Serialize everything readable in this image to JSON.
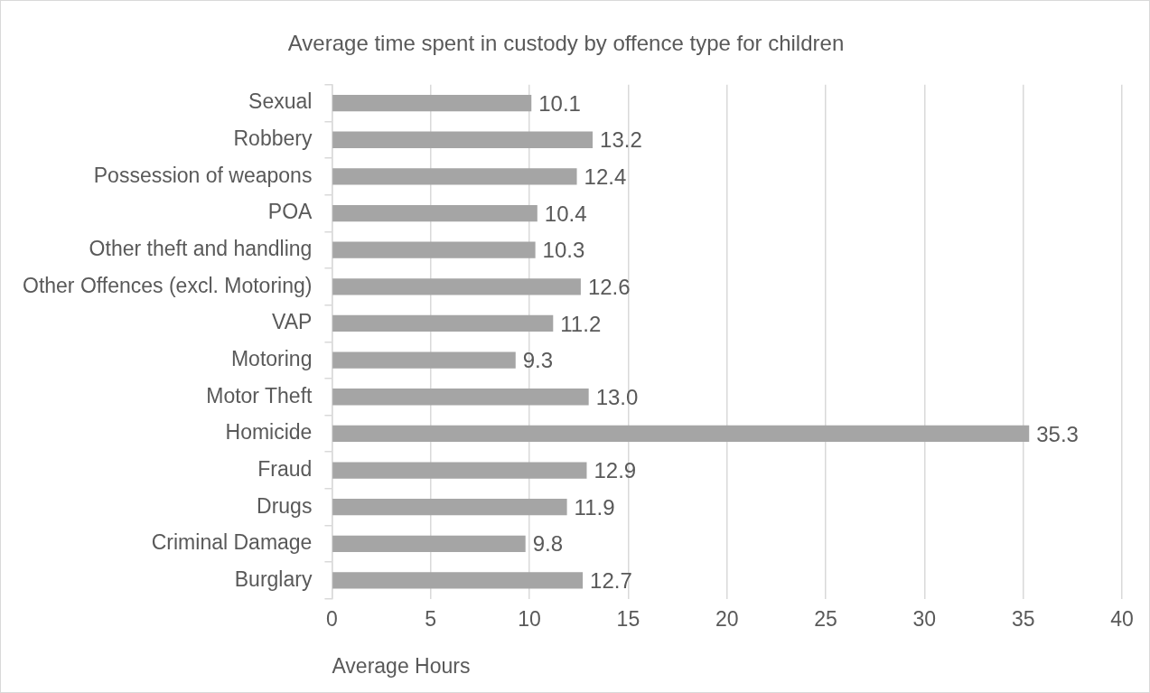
{
  "chart_data": {
    "type": "bar",
    "orientation": "horizontal",
    "title": "Average time spent in custody by offence type for children",
    "xlabel": "Average Hours",
    "categories": [
      "Sexual",
      "Robbery",
      "Possession of weapons",
      "POA",
      "Other theft and handling",
      "Other Offences (excl. Motoring)",
      "VAP",
      "Motoring",
      "Motor Theft",
      "Homicide",
      "Fraud",
      "Drugs",
      "Criminal Damage",
      "Burglary"
    ],
    "values": [
      10.1,
      13.2,
      12.4,
      10.4,
      10.3,
      12.6,
      11.2,
      9.3,
      13.0,
      35.3,
      12.9,
      11.9,
      9.8,
      12.7
    ],
    "value_labels": [
      "10.1",
      "13.2",
      "12.4",
      "10.4",
      "10.3",
      "12.6",
      "11.2",
      "9.3",
      "13.0",
      "35.3",
      "12.9",
      "11.9",
      "9.8",
      "12.7"
    ],
    "color": "#a5a5a5",
    "xlim": [
      0,
      40
    ],
    "xticks": [
      0,
      5,
      10,
      15,
      20,
      25,
      30,
      35,
      40
    ],
    "grid": "x",
    "legend": false
  }
}
